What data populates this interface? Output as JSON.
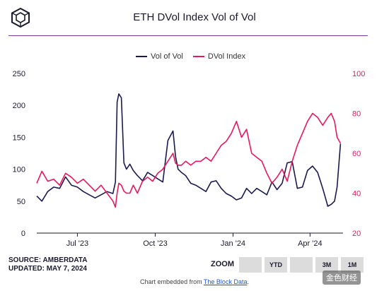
{
  "header": {
    "title": "ETH DVol Index Vol of Vol"
  },
  "footer": {
    "source_line": "SOURCE: AMBERDATA",
    "updated_line": "UPDATED: MAY 7, 2024",
    "embedded_prefix": "Chart embedded from ",
    "embedded_link": "The Block Data",
    "embedded_suffix": "."
  },
  "zoom": {
    "label": "ZOOM",
    "buttons": [
      "",
      "YTD",
      "",
      "3M",
      "1M"
    ]
  },
  "watermark": "金色财经",
  "colors": {
    "vol_of_vol": "#1b1a4e",
    "dvol_index": "#e8185d",
    "accent_rule": "#7b3fa0"
  },
  "chart_data": {
    "type": "line",
    "title": "ETH DVol Index Vol of Vol",
    "x_ticks": [
      "Jul '23",
      "Oct '23",
      "Jan '24",
      "Apr '24"
    ],
    "y_left": {
      "ticks": [
        0,
        50,
        100,
        150,
        200,
        250
      ],
      "range": [
        0,
        250
      ]
    },
    "y_right": {
      "ticks": [
        20,
        40,
        60,
        80,
        100
      ],
      "range": [
        20,
        100
      ]
    },
    "legend_position": "top-center",
    "grid": false,
    "series": [
      {
        "name": "Vol of Vol",
        "axis": "left",
        "x": [
          "2023-05-14",
          "2023-05-20",
          "2023-05-27",
          "2023-06-03",
          "2023-06-10",
          "2023-06-17",
          "2023-06-24",
          "2023-07-01",
          "2023-07-08",
          "2023-07-15",
          "2023-07-22",
          "2023-07-29",
          "2023-08-05",
          "2023-08-12",
          "2023-08-15",
          "2023-08-17",
          "2023-08-19",
          "2023-08-22",
          "2023-08-25",
          "2023-08-28",
          "2023-09-01",
          "2023-09-05",
          "2023-09-10",
          "2023-09-16",
          "2023-09-22",
          "2023-09-28",
          "2023-10-04",
          "2023-10-10",
          "2023-10-16",
          "2023-10-22",
          "2023-10-25",
          "2023-10-28",
          "2023-11-01",
          "2023-11-06",
          "2023-11-12",
          "2023-11-18",
          "2023-11-24",
          "2023-11-30",
          "2023-12-06",
          "2023-12-12",
          "2023-12-18",
          "2023-12-24",
          "2023-12-30",
          "2024-01-05",
          "2024-01-11",
          "2024-01-17",
          "2024-01-23",
          "2024-01-29",
          "2024-02-04",
          "2024-02-10",
          "2024-02-16",
          "2024-02-22",
          "2024-02-28",
          "2024-03-05",
          "2024-03-11",
          "2024-03-17",
          "2024-03-23",
          "2024-03-29",
          "2024-04-04",
          "2024-04-10",
          "2024-04-16",
          "2024-04-22",
          "2024-04-26",
          "2024-04-30",
          "2024-05-03",
          "2024-05-07"
        ],
        "values": [
          58,
          50,
          65,
          72,
          70,
          88,
          75,
          72,
          65,
          60,
          55,
          60,
          65,
          62,
          80,
          205,
          218,
          212,
          110,
          100,
          108,
          98,
          90,
          82,
          95,
          90,
          85,
          80,
          145,
          160,
          120,
          100,
          95,
          90,
          78,
          75,
          70,
          65,
          80,
          82,
          70,
          62,
          58,
          52,
          55,
          70,
          62,
          70,
          65,
          60,
          80,
          68,
          78,
          110,
          112,
          70,
          72,
          98,
          105,
          95,
          70,
          42,
          45,
          50,
          72,
          140
        ]
      },
      {
        "name": "DVol Index",
        "axis": "right",
        "x": [
          "2023-05-14",
          "2023-05-20",
          "2023-05-27",
          "2023-06-03",
          "2023-06-10",
          "2023-06-17",
          "2023-06-24",
          "2023-07-01",
          "2023-07-08",
          "2023-07-15",
          "2023-07-22",
          "2023-07-29",
          "2023-08-05",
          "2023-08-12",
          "2023-08-15",
          "2023-08-17",
          "2023-08-19",
          "2023-08-22",
          "2023-08-25",
          "2023-08-28",
          "2023-09-01",
          "2023-09-05",
          "2023-09-10",
          "2023-09-16",
          "2023-09-22",
          "2023-09-28",
          "2023-10-04",
          "2023-10-10",
          "2023-10-16",
          "2023-10-22",
          "2023-10-25",
          "2023-10-28",
          "2023-11-01",
          "2023-11-06",
          "2023-11-12",
          "2023-11-18",
          "2023-11-24",
          "2023-11-30",
          "2023-12-06",
          "2023-12-12",
          "2023-12-18",
          "2023-12-24",
          "2023-12-30",
          "2024-01-05",
          "2024-01-11",
          "2024-01-17",
          "2024-01-23",
          "2024-01-29",
          "2024-02-04",
          "2024-02-10",
          "2024-02-16",
          "2024-02-22",
          "2024-02-28",
          "2024-03-05",
          "2024-03-11",
          "2024-03-17",
          "2024-03-23",
          "2024-03-29",
          "2024-04-04",
          "2024-04-10",
          "2024-04-16",
          "2024-04-22",
          "2024-04-26",
          "2024-04-30",
          "2024-05-03",
          "2024-05-07"
        ],
        "values": [
          45,
          51,
          46,
          47,
          44,
          50,
          48,
          45,
          47,
          44,
          41,
          44,
          40,
          36,
          33,
          40,
          45,
          44,
          41,
          40,
          40,
          44,
          40,
          46,
          48,
          46,
          50,
          52,
          56,
          60,
          55,
          54,
          54,
          56,
          54,
          56,
          56,
          58,
          56,
          60,
          64,
          66,
          70,
          76,
          68,
          72,
          60,
          58,
          56,
          50,
          45,
          48,
          52,
          46,
          56,
          64,
          70,
          76,
          80,
          78,
          74,
          78,
          80,
          76,
          68,
          65
        ]
      }
    ]
  }
}
